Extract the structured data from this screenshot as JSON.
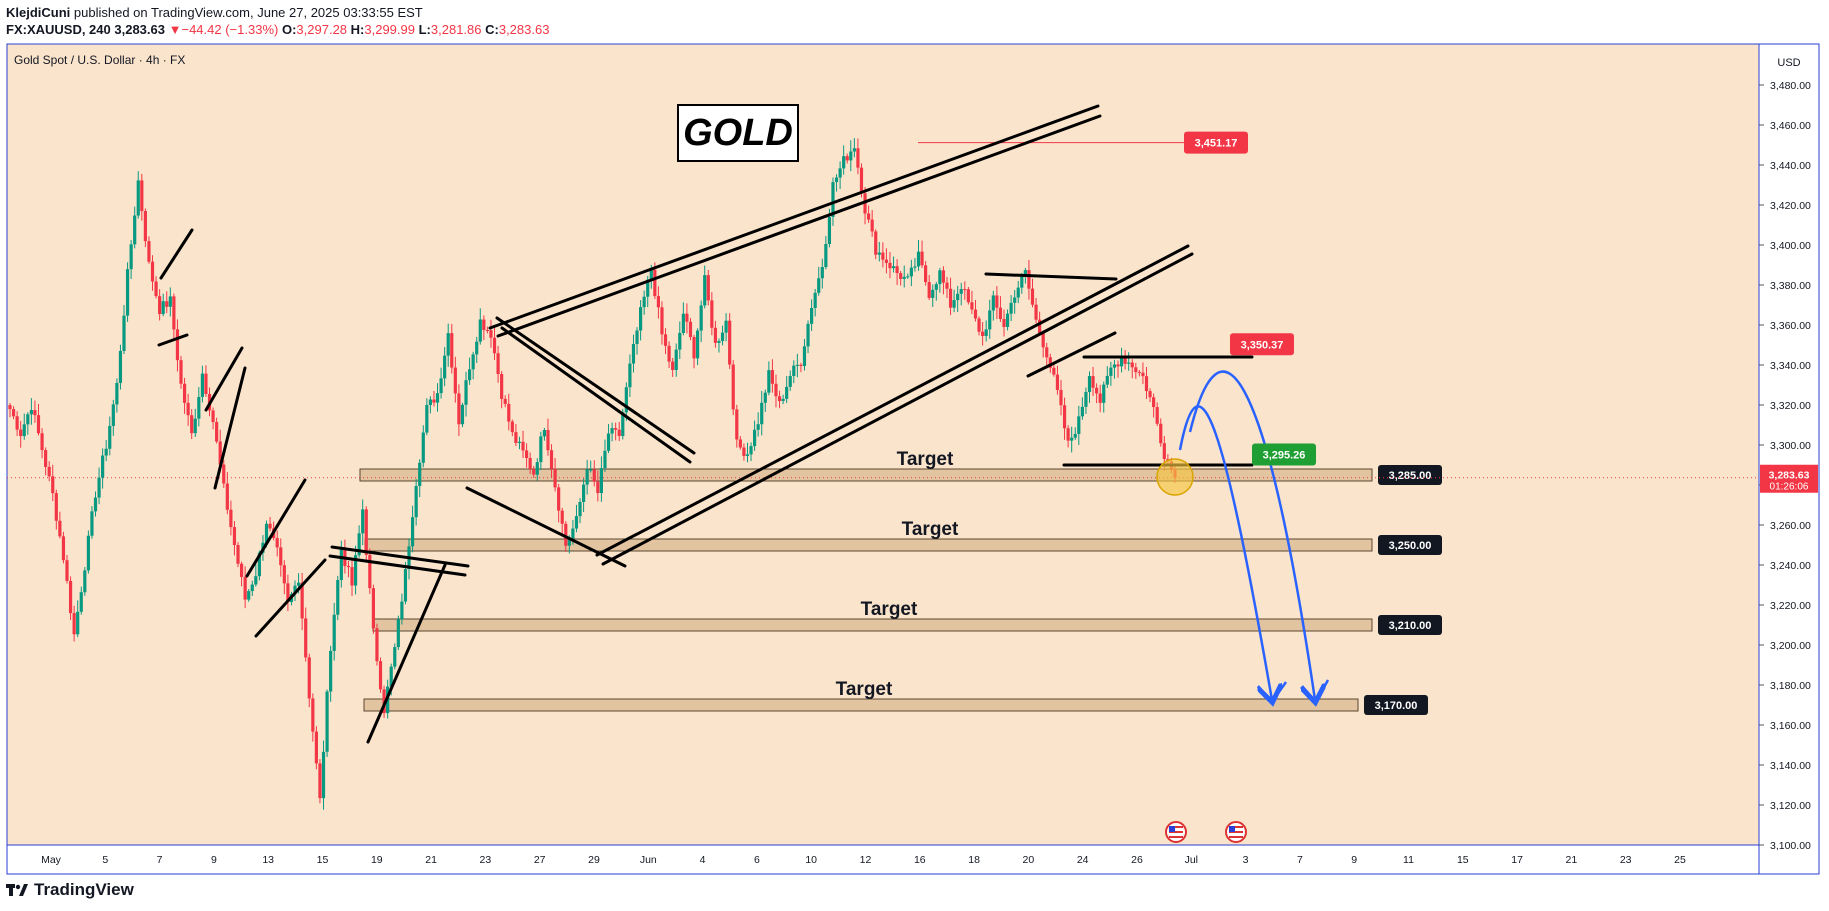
{
  "header": {
    "author": "KlejdiCuni",
    "published": " published on TradingView.com, June 27, 2025 03:33:55 EST",
    "symbol": "FX:XAUUSD, 240",
    "last": "3,283.63",
    "change": "−44.42 (−1.33%)",
    "o_label": "O:",
    "o": "3,297.28",
    "h_label": "H:",
    "h": "3,299.99",
    "l_label": "L:",
    "l": "3,281.86",
    "c_label": "C:",
    "c": "3,283.63"
  },
  "chart_title": "Gold Spot / U.S. Dollar · 4h · FX",
  "currency": "USD",
  "gold_label": "GOLD",
  "footer": {
    "brand": "TradingView"
  },
  "colors": {
    "background": "#fbe4cc",
    "up": "#089981",
    "down": "#f23645",
    "blue": "#2962ff",
    "zone_fill": "#e2c4a0"
  },
  "chart_data": {
    "type": "candlestick",
    "ylim": [
      3100,
      3500
    ],
    "y_ticks": [
      3100,
      3120,
      3140,
      3160,
      3180,
      3200,
      3220,
      3240,
      3260,
      3280,
      3300,
      3320,
      3340,
      3360,
      3380,
      3400,
      3420,
      3440,
      3460,
      3480
    ],
    "y_tick_labels": [
      "3,100.00",
      "3,120.00",
      "3,140.00",
      "3,160.00",
      "3,180.00",
      "3,200.00",
      "3,220.00",
      "3,240.00",
      "3,260.00",
      "3,280.00",
      "3,300.00",
      "3,320.00",
      "3,340.00",
      "3,360.00",
      "3,380.00",
      "3,400.00",
      "3,420.00",
      "3,440.00",
      "3,460.00",
      "3,480.00"
    ],
    "x_labels": [
      "May",
      "5",
      "7",
      "9",
      "13",
      "15",
      "19",
      "21",
      "23",
      "27",
      "29",
      "Jun",
      "4",
      "6",
      "10",
      "12",
      "16",
      "18",
      "20",
      "24",
      "26",
      "Jul",
      "3",
      "7",
      "9",
      "11",
      "15",
      "17",
      "21",
      "23",
      "25"
    ],
    "price_path": [
      3318,
      3306,
      3320,
      3298,
      3275,
      3244,
      3205,
      3240,
      3276,
      3300,
      3330,
      3385,
      3432,
      3390,
      3368,
      3372,
      3330,
      3305,
      3336,
      3312,
      3278,
      3250,
      3223,
      3236,
      3262,
      3246,
      3220,
      3234,
      3175,
      3122,
      3200,
      3248,
      3230,
      3268,
      3206,
      3168,
      3198,
      3236,
      3282,
      3318,
      3326,
      3356,
      3312,
      3340,
      3362,
      3356,
      3326,
      3305,
      3296,
      3286,
      3310,
      3280,
      3250,
      3262,
      3290,
      3276,
      3306,
      3305,
      3339,
      3366,
      3388,
      3355,
      3336,
      3366,
      3346,
      3382,
      3350,
      3362,
      3300,
      3296,
      3312,
      3335,
      3320,
      3335,
      3342,
      3370,
      3390,
      3430,
      3442,
      3450,
      3418,
      3398,
      3392,
      3386,
      3382,
      3394,
      3376,
      3386,
      3370,
      3380,
      3366,
      3354,
      3372,
      3360,
      3376,
      3386,
      3362,
      3346,
      3326,
      3300,
      3312,
      3336,
      3322,
      3338,
      3344,
      3340,
      3334,
      3318,
      3296,
      3283.63
    ],
    "horizontal_levels": [
      {
        "value": 3285.0,
        "label": "3,285.00",
        "text": "Target"
      },
      {
        "value": 3250.0,
        "label": "3,250.00",
        "text": "Target"
      },
      {
        "value": 3210.0,
        "label": "3,210.00",
        "text": "Target"
      },
      {
        "value": 3170.0,
        "label": "3,170.00",
        "text": "Target"
      }
    ],
    "price_labels": [
      {
        "value": 3451.17,
        "label": "3,451.17",
        "kind": "red"
      },
      {
        "value": 3350.37,
        "label": "3,350.37",
        "kind": "red"
      },
      {
        "value": 3295.26,
        "label": "3,295.26",
        "kind": "green"
      }
    ],
    "last_price": {
      "value": 3283.63,
      "label": "3,283.63",
      "countdown": "01:26:06"
    }
  }
}
